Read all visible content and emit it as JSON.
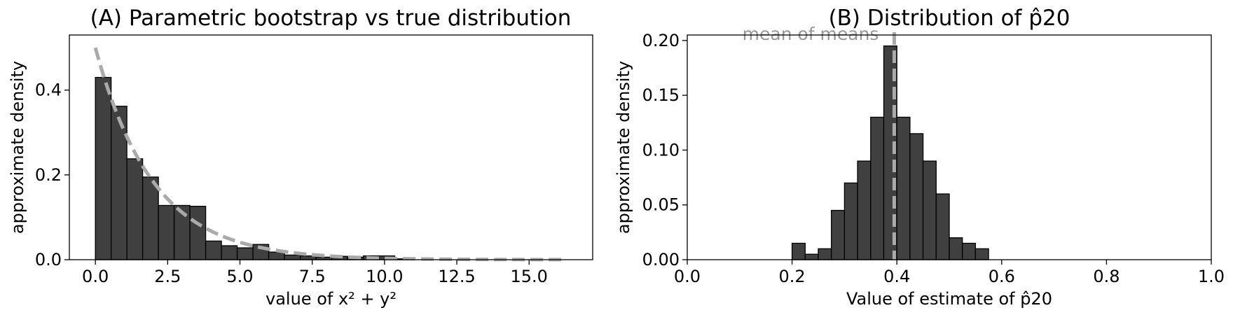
{
  "chart_data": [
    {
      "type": "bar",
      "title": "(A) Parametric bootstrap vs true distribution",
      "xlabel": "value of x² + y²",
      "ylabel": "approximate density",
      "xlim": [
        -0.9,
        17.2
      ],
      "ylim": [
        0,
        0.53
      ],
      "xticks": [
        "0.0",
        "2.5",
        "5.0",
        "7.5",
        "10.0",
        "12.5",
        "15.0"
      ],
      "xtick_values": [
        0,
        2.5,
        5,
        7.5,
        10,
        12.5,
        15
      ],
      "yticks": [
        "0.0",
        "0.2",
        "0.4"
      ],
      "ytick_values": [
        0,
        0.2,
        0.4
      ],
      "bin_width": 0.545,
      "bin_start": 0,
      "values": [
        0.43,
        0.362,
        0.238,
        0.195,
        0.128,
        0.128,
        0.126,
        0.044,
        0.033,
        0.028,
        0.036,
        0.018,
        0.011,
        0.009,
        0.006,
        0.008,
        0.006,
        0.009,
        0.009,
        0.002
      ],
      "overlay": {
        "type": "line",
        "style": "dashed",
        "function": "0.5*exp(-x/2)",
        "x_range": [
          0,
          16.3
        ]
      },
      "colors": {
        "bar_fill": "#404040",
        "bar_edge": "#000000",
        "overlay": "#aaaaaa"
      },
      "grid": false
    },
    {
      "type": "bar",
      "title": "(B) Distribution of p̂20",
      "xlabel": "Value of estimate of p̂20",
      "ylabel": "approximate density",
      "xlim": [
        0,
        1
      ],
      "ylim": [
        0,
        0.205
      ],
      "xticks": [
        "0.0",
        "0.2",
        "0.4",
        "0.6",
        "0.8",
        "1.0"
      ],
      "xtick_values": [
        0,
        0.2,
        0.4,
        0.6,
        0.8,
        1.0
      ],
      "yticks": [
        "0.00",
        "0.05",
        "0.10",
        "0.15",
        "0.20"
      ],
      "ytick_values": [
        0,
        0.05,
        0.1,
        0.15,
        0.2
      ],
      "bin_width": 0.025,
      "bin_start": 0.2,
      "values": [
        0.015,
        0.005,
        0.01,
        0.045,
        0.07,
        0.09,
        0.13,
        0.195,
        0.13,
        0.115,
        0.09,
        0.06,
        0.02,
        0.015,
        0.01
      ],
      "reference_line": {
        "x": 0.395,
        "label": "mean of means",
        "style": "dashed"
      },
      "colors": {
        "bar_fill": "#404040",
        "bar_edge": "#000000",
        "overlay": "#aaaaaa"
      },
      "grid": false
    }
  ]
}
